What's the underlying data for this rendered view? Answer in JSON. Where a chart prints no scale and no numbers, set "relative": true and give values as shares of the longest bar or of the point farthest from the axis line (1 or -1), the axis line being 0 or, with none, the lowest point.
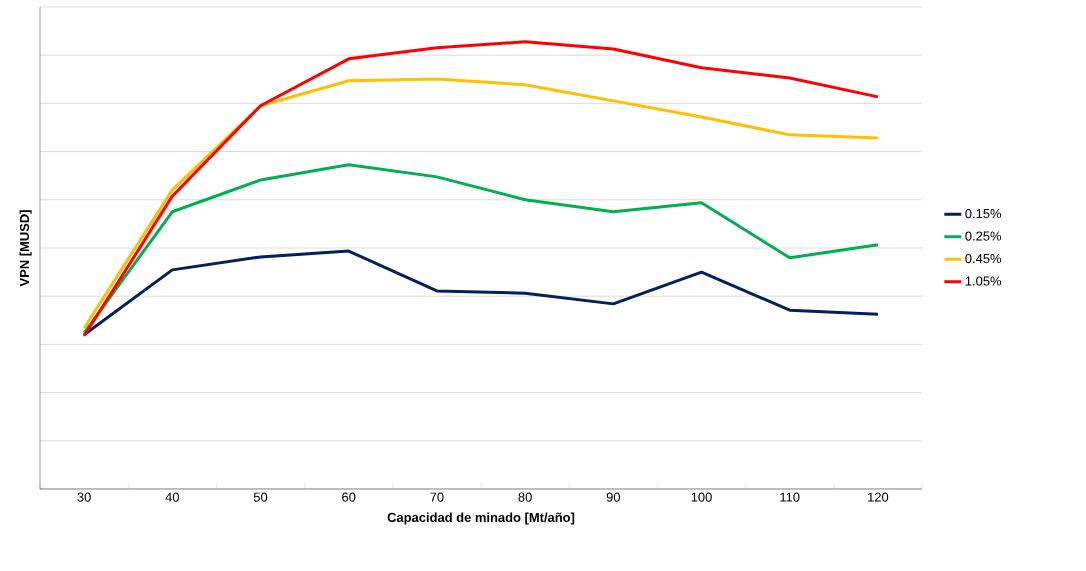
{
  "chart_data": {
    "type": "line",
    "xlabel": "Capacidad de minado [Mt/año]",
    "ylabel": "VPN [MUSD]",
    "relative": true,
    "grid": "y",
    "legend": "right",
    "marker": "none",
    "line_style": "solid",
    "categories": [
      "30",
      "40",
      "50",
      "60",
      "70",
      "80",
      "90",
      "100",
      "110",
      "120"
    ],
    "series": [
      {
        "name": "0.15%",
        "color": "#002060",
        "values": [
          0.345,
          0.49,
          0.519,
          0.532,
          0.443,
          0.438,
          0.414,
          0.485,
          0.4,
          0.391
        ]
      },
      {
        "name": "0.25%",
        "color": "#00b050",
        "values": [
          0.349,
          0.62,
          0.691,
          0.725,
          0.698,
          0.647,
          0.62,
          0.64,
          0.517,
          0.546
        ]
      },
      {
        "name": "0.45%",
        "color": "#ffc000",
        "values": [
          0.36,
          0.669,
          0.857,
          0.913,
          0.917,
          0.904,
          0.868,
          0.832,
          0.792,
          0.785
        ]
      },
      {
        "name": "1.05%",
        "color": "#ff0000",
        "values": [
          0.342,
          0.655,
          0.857,
          0.962,
          0.987,
          1,
          0.984,
          0.942,
          0.919,
          0.877
        ]
      }
    ]
  }
}
